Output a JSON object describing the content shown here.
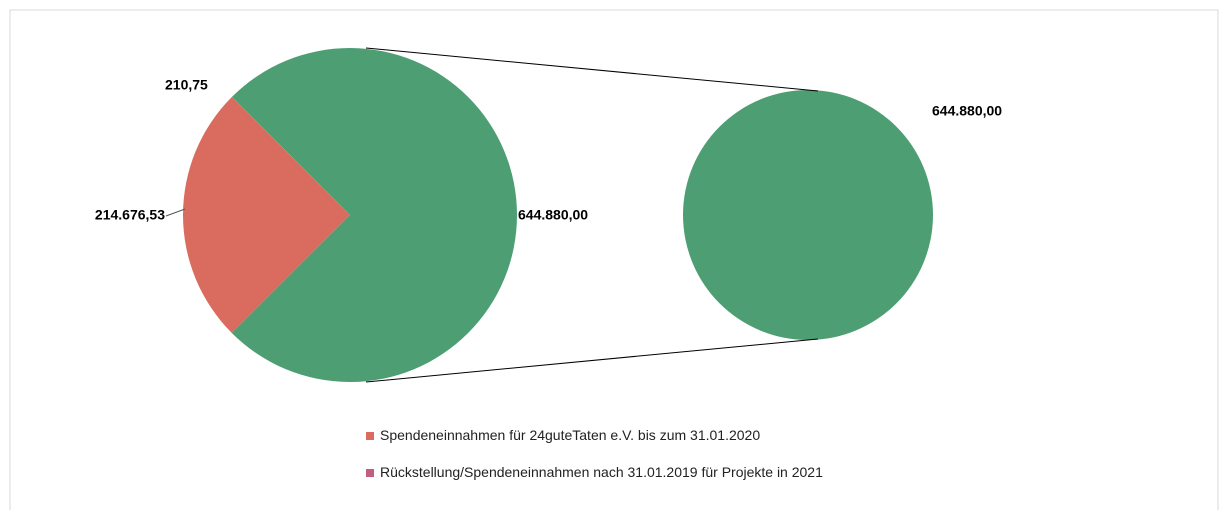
{
  "chart_data": {
    "type": "pie-of-pie",
    "categories": [
      "Spendeneinnahmen für 24guteTaten e.V. bis zum 31.01.2020",
      "Rückstellung/Spendeneinnahmen nach 31.01.2019 für Projekte in 2021",
      null
    ],
    "values": [
      214676.53,
      210.75,
      644880.0
    ],
    "value_labels": [
      "214.676,53",
      "210,75",
      "644.880,00"
    ],
    "colors": [
      "#d96b5f",
      "#c0607e",
      "#4e9e74"
    ],
    "secondary": [
      2
    ]
  }
}
